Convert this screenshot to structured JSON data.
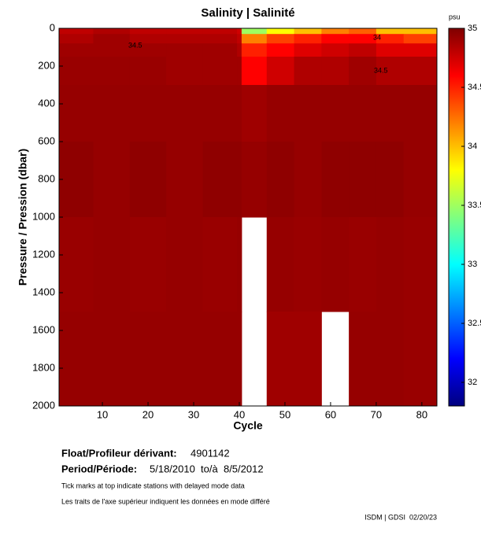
{
  "chart_data": {
    "type": "heatmap",
    "title": "Salinity | Salinité",
    "colorbar_label": "psu",
    "x_label": "Cycle",
    "y_label": "Pressure / Pression (dbar)",
    "colormap": "jet",
    "x_edges": [
      0.5,
      8,
      16,
      24,
      32,
      39.5,
      40.5,
      46,
      52,
      58,
      64,
      70,
      76,
      83.3
    ],
    "y_edges": [
      0,
      30,
      80,
      150,
      300,
      600,
      1000,
      1500,
      2000
    ],
    "z": [
      [
        34.8,
        34.85,
        34.8,
        34.8,
        34.8,
        34.75,
        33.5,
        33.8,
        34.0,
        34.2,
        34.3,
        34.0,
        34.0
      ],
      [
        34.85,
        34.9,
        34.85,
        34.85,
        34.85,
        34.8,
        34.2,
        34.4,
        34.5,
        34.6,
        34.6,
        34.5,
        34.4
      ],
      [
        34.9,
        34.9,
        34.9,
        34.9,
        34.9,
        34.85,
        34.5,
        34.6,
        34.7,
        34.75,
        34.8,
        34.7,
        34.7
      ],
      [
        34.92,
        34.92,
        34.92,
        34.9,
        34.9,
        34.9,
        34.6,
        34.75,
        34.85,
        34.85,
        34.9,
        34.85,
        34.85
      ],
      [
        34.93,
        34.93,
        34.93,
        34.93,
        34.93,
        34.93,
        34.9,
        34.93,
        34.93,
        34.93,
        34.93,
        34.93,
        34.93
      ],
      [
        34.95,
        34.93,
        34.95,
        34.93,
        34.95,
        34.95,
        34.93,
        34.95,
        34.93,
        34.95,
        34.95,
        34.95,
        34.93
      ],
      [
        34.92,
        34.93,
        34.92,
        34.93,
        34.92,
        34.93,
        null,
        34.93,
        34.92,
        34.93,
        34.92,
        34.93,
        34.92
      ],
      [
        34.93,
        34.93,
        34.93,
        34.93,
        34.93,
        34.93,
        null,
        34.9,
        34.9,
        null,
        34.93,
        34.93,
        34.92
      ]
    ],
    "xlim": [
      0.5,
      83.3
    ],
    "xticks": [
      10,
      20,
      30,
      40,
      50,
      60,
      70,
      80
    ],
    "ylim": [
      0,
      2000
    ],
    "yticks": [
      0,
      200,
      400,
      600,
      800,
      1000,
      1200,
      1400,
      1600,
      1800,
      2000
    ],
    "clim": [
      31.8,
      35
    ],
    "cticks": [
      32,
      32.5,
      33,
      33.5,
      34,
      34.5,
      35
    ],
    "annotations": [
      "34.5",
      "34",
      "34.5"
    ],
    "float_label": "Float/Profileur dérivant:",
    "float_id": "4901142",
    "period_label": "Period/Période:",
    "period": "5/18/2010  to/à  8/5/2012",
    "note_en": "Tick marks at top indicate stations with delayed mode data",
    "note_fr": "Les traits de l'axe supérieur indiquent les données en mode différé",
    "footer": "ISDM | GDSI  02/20/23"
  }
}
